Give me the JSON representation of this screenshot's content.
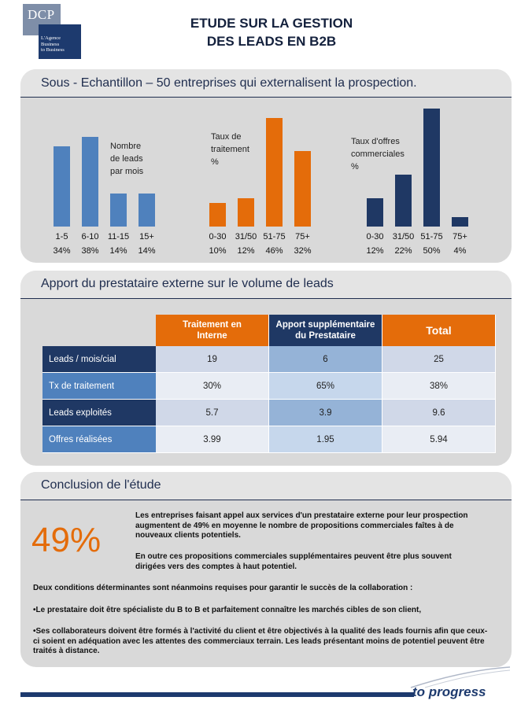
{
  "logo": {
    "name": "DCP",
    "tagline": [
      "L'Agence",
      "Business",
      "to Business"
    ]
  },
  "title": {
    "line1": "ETUDE SUR LA GESTION",
    "line2": "DES LEADS EN B2B"
  },
  "sample": {
    "heading": "Sous - Echantillon – 50 entreprises qui  externalisent la prospection.",
    "charts": [
      {
        "type": "bar",
        "title": [
          "Nombre",
          "de leads",
          "par mois"
        ],
        "color": "#4f81bd",
        "categories": [
          "1-5",
          "6-10",
          "11-15",
          "15+"
        ],
        "labels": [
          "34%",
          "38%",
          "14%",
          "14%"
        ],
        "values": [
          34,
          38,
          14,
          14
        ]
      },
      {
        "type": "bar",
        "title": [
          "Taux de",
          "traitement",
          "%"
        ],
        "color": "#e46c0a",
        "categories": [
          "0-30",
          "31/50",
          "51-75",
          "75+"
        ],
        "labels": [
          "10%",
          "12%",
          "46%",
          "32%"
        ],
        "values": [
          10,
          12,
          46,
          32
        ]
      },
      {
        "type": "bar",
        "title": [
          "Taux d'offres",
          "commerciales",
          "%"
        ],
        "color": "#1f3864",
        "categories": [
          "0-30",
          "31/50",
          "51-75",
          "75+"
        ],
        "labels": [
          "12%",
          "22%",
          "50%",
          "4%"
        ],
        "values": [
          12,
          22,
          50,
          4
        ]
      }
    ]
  },
  "chart_data": [
    {
      "type": "bar",
      "categories": [
        "1-5",
        "6-10",
        "11-15",
        "15+"
      ],
      "values": [
        34,
        38,
        14,
        14
      ],
      "title": "Nombre de leads par mois"
    },
    {
      "type": "bar",
      "categories": [
        "0-30",
        "31/50",
        "51-75",
        "75+"
      ],
      "values": [
        10,
        12,
        46,
        32
      ],
      "title": "Taux de traitement %"
    },
    {
      "type": "bar",
      "categories": [
        "0-30",
        "31/50",
        "51-75",
        "75+"
      ],
      "values": [
        12,
        22,
        50,
        4
      ],
      "title": "Taux d'offres commerciales %"
    }
  ],
  "apport": {
    "heading": "Apport du prestataire externe sur le volume de leads",
    "columns": [
      "Traitement en Interne",
      "Apport supplémentaire du Prestataire",
      "Total"
    ],
    "column_colors": [
      "#e46c0a",
      "#1f3864",
      "#e46c0a"
    ],
    "rows": [
      {
        "label": "Leads / mois/cial",
        "cells": [
          "19",
          "6",
          "25"
        ]
      },
      {
        "label": "Tx de traitement",
        "cells": [
          "30%",
          "65%",
          "38%"
        ]
      },
      {
        "label": "Leads exploités",
        "cells": [
          "5.7",
          "3.9",
          "9.6"
        ]
      },
      {
        "label": "Offres réalisées",
        "cells": [
          "3.99",
          "1.95",
          "5.94"
        ]
      }
    ]
  },
  "conclusion": {
    "heading": "Conclusion de l'étude",
    "big": "49%",
    "p1": "Les entreprises faisant appel aux services d'un prestataire externe pour leur prospection augmentent de 49% en moyenne le nombre de propositions commerciales faîtes à de nouveaux clients potentiels.",
    "p2": "En outre ces propositions commerciales supplémentaires peuvent être plus souvent dirigées vers des comptes à haut potentiel.",
    "p3": "Deux conditions déterminantes sont néanmoins requises pour garantir le succès de la collaboration :",
    "p4": "•Le prestataire doit être spécialiste du B to B et parfaitement connaître les marchés cibles de son client,",
    "p5": "•Ses collaborateurs doivent être formés à l'activité du client et être objectivés à la qualité des leads fournis afin que ceux-ci soient en adéquation avec les attentes des commerciaux terrain.  Les leads présentant moins de potentiel peuvent être traités à distance."
  },
  "footer": {
    "brand": "to progress"
  }
}
